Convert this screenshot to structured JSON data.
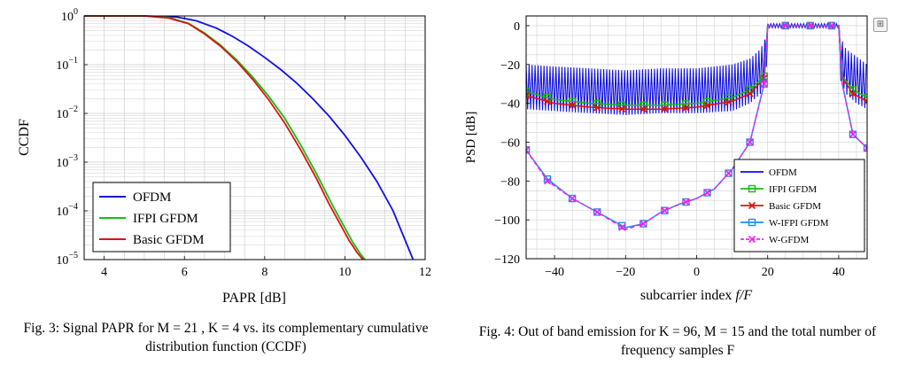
{
  "figures": [
    {
      "caption": "Fig. 3: Signal PAPR for M = 21 , K = 4 vs. its complementary cumulative distribution function (CCDF)",
      "chart_data": {
        "type": "line",
        "xlabel": "PAPR [dB]",
        "ylabel": "CCDF",
        "xlim": [
          3.5,
          12
        ],
        "ylim_log10": [
          -5,
          0
        ],
        "yscale": "log",
        "grid": true,
        "xticks": [
          {
            "value": 4,
            "label": "4"
          },
          {
            "value": 6,
            "label": "6"
          },
          {
            "value": 8,
            "label": "8"
          },
          {
            "value": 10,
            "label": "10"
          },
          {
            "value": 12,
            "label": "12"
          }
        ],
        "yticks": [
          {
            "value": 0,
            "mantissa": "10",
            "exp": "0"
          },
          {
            "value": -1,
            "mantissa": "10",
            "exp": "−1"
          },
          {
            "value": -2,
            "mantissa": "10",
            "exp": "−2"
          },
          {
            "value": -3,
            "mantissa": "10",
            "exp": "−3"
          },
          {
            "value": -4,
            "mantissa": "10",
            "exp": "−4"
          },
          {
            "value": -5,
            "mantissa": "10",
            "exp": "−5"
          }
        ],
        "legend_position": "bottom-left",
        "series": [
          {
            "name": "OFDM",
            "color": "#1010e0",
            "x": [
              3.5,
              5.0,
              5.8,
              6.3,
              6.8,
              7.2,
              7.6,
              8.0,
              8.4,
              8.8,
              9.2,
              9.6,
              10.0,
              10.4,
              10.8,
              11.2,
              11.45,
              11.7
            ],
            "log10_ccdf": [
              0,
              0,
              -0.02,
              -0.1,
              -0.25,
              -0.42,
              -0.62,
              -0.85,
              -1.1,
              -1.38,
              -1.7,
              -2.05,
              -2.45,
              -2.9,
              -3.4,
              -4.0,
              -4.5,
              -5.0
            ]
          },
          {
            "name": "IFPI GFDM",
            "color": "#10c010",
            "x": [
              3.5,
              5.0,
              5.6,
              6.1,
              6.5,
              6.9,
              7.3,
              7.7,
              8.1,
              8.5,
              8.9,
              9.3,
              9.7,
              10.0,
              10.2,
              10.4,
              10.5
            ],
            "log10_ccdf": [
              0,
              0,
              -0.03,
              -0.15,
              -0.35,
              -0.6,
              -0.9,
              -1.25,
              -1.65,
              -2.1,
              -2.65,
              -3.25,
              -3.9,
              -4.35,
              -4.65,
              -4.9,
              -5.0
            ]
          },
          {
            "name": "Basic GFDM",
            "color": "#e01010",
            "x": [
              3.5,
              5.0,
              5.6,
              6.1,
              6.5,
              6.9,
              7.3,
              7.7,
              8.1,
              8.5,
              8.9,
              9.3,
              9.6,
              9.9,
              10.1,
              10.3,
              10.45
            ],
            "log10_ccdf": [
              0,
              0,
              -0.04,
              -0.16,
              -0.37,
              -0.62,
              -0.93,
              -1.3,
              -1.72,
              -2.2,
              -2.75,
              -3.35,
              -3.85,
              -4.3,
              -4.6,
              -4.85,
              -5.0
            ]
          }
        ]
      }
    },
    {
      "caption": "Fig. 4: Out of band emission for K = 96, M = 15 and the total number of frequency samples F",
      "chart_data": {
        "type": "line",
        "xlabel": "subcarrier index f/F",
        "ylabel": "PSD [dB]",
        "xlim": [
          -48,
          48
        ],
        "ylim": [
          -120,
          5
        ],
        "grid": true,
        "xticks": [
          {
            "value": -40,
            "label": "−40"
          },
          {
            "value": -20,
            "label": "−20"
          },
          {
            "value": 0,
            "label": "0"
          },
          {
            "value": 20,
            "label": "20"
          },
          {
            "value": 40,
            "label": "40"
          }
        ],
        "yticks": [
          {
            "value": 0,
            "label": "0"
          },
          {
            "value": -20,
            "label": "−20"
          },
          {
            "value": -40,
            "label": "−40"
          },
          {
            "value": -60,
            "label": "−60"
          },
          {
            "value": -80,
            "label": "−80"
          },
          {
            "value": -100,
            "label": "−100"
          },
          {
            "value": -120,
            "label": "−120"
          }
        ],
        "legend_position": "bottom-right",
        "series": [
          {
            "name": "OFDM",
            "color": "#1010e0",
            "marker": "none",
            "x": [
              -48,
              -40,
              -30,
              -20,
              -10,
              0,
              10,
              15,
              18,
              19.5,
              20,
              40,
              40.5,
              42,
              45,
              48
            ],
            "upper": [
              -20,
              -21,
              -22,
              -23,
              -22,
              -22,
              -20,
              -17,
              -12,
              -6,
              0,
              0,
              -6,
              -12,
              -16,
              -20
            ],
            "lower": [
              -43,
              -44,
              -45,
              -46,
              -45,
              -45,
              -44,
              -40,
              -35,
              -28,
              0,
              0,
              -28,
              -35,
              -40,
              -43
            ]
          },
          {
            "name": "IFPI GFDM",
            "color": "#10c010",
            "marker": "square",
            "x": [
              -48,
              -40,
              -30,
              -20,
              -10,
              0,
              10,
              15,
              19,
              20,
              40,
              41,
              44,
              48
            ],
            "y": [
              -34,
              -38,
              -40,
              -41,
              -41,
              -40,
              -37,
              -33,
              -26,
              0,
              0,
              -26,
              -33,
              -37
            ]
          },
          {
            "name": "Basic GFDM",
            "color": "#e01010",
            "marker": "x",
            "x": [
              -48,
              -40,
              -30,
              -20,
              -10,
              0,
              10,
              15,
              19,
              20,
              40,
              41,
              44,
              48
            ],
            "y": [
              -36,
              -40,
              -42,
              -43,
              -43,
              -42,
              -39,
              -35,
              -27,
              0,
              0,
              -27,
              -35,
              -39
            ]
          },
          {
            "name": "W-IFPI GFDM",
            "color": "#1e8ce6",
            "marker": "square",
            "x": [
              -48,
              -42,
              -35,
              -28,
              -20,
              -15,
              -10,
              -5,
              0,
              5,
              10,
              15,
              19,
              20,
              25,
              30,
              35,
              40,
              41,
              44,
              48
            ],
            "y": [
              -64,
              -79,
              -89,
              -96,
              -104,
              -102,
              -96,
              -92,
              -89,
              -84,
              -74,
              -60,
              -30,
              0,
              0,
              0,
              0,
              0,
              -30,
              -56,
              -63
            ]
          },
          {
            "name": "W-GFDM",
            "color": "#f020f0",
            "marker": "x-dashed",
            "x": [
              -48,
              -42,
              -35,
              -28,
              -20,
              -15,
              -10,
              -5,
              0,
              5,
              10,
              15,
              19,
              20,
              25,
              30,
              35,
              40,
              41,
              44,
              48
            ],
            "y": [
              -64,
              -80,
              -89,
              -96,
              -105,
              -102,
              -96,
              -92,
              -89,
              -84,
              -74,
              -60,
              -30,
              0,
              0,
              0,
              0,
              0,
              -30,
              -56,
              -63
            ]
          }
        ],
        "marker_x": [
          -48,
          -42,
          -35,
          -28,
          -21,
          -15,
          -9,
          -3,
          3,
          9,
          15,
          19,
          25,
          32,
          38,
          44,
          48
        ]
      }
    }
  ],
  "toolbar": {
    "icon": "expand-icon",
    "glyph": "⊞"
  }
}
